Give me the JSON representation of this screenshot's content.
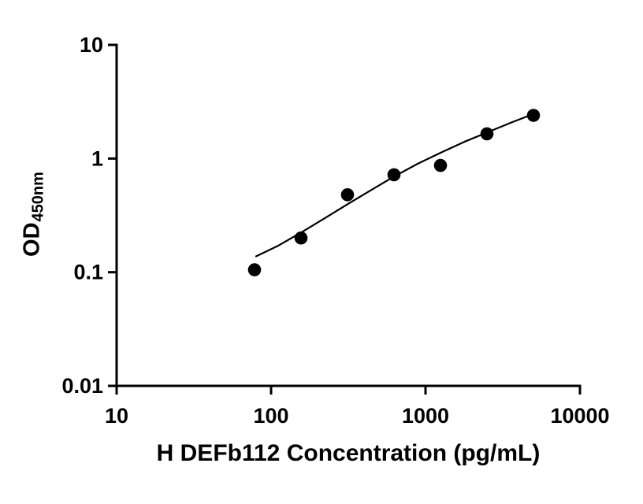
{
  "page": {
    "background": "#ffffff"
  },
  "chart_data": {
    "type": "scatter",
    "title": "",
    "xlabel": "H DEFb112 Concentration (pg/mL)",
    "ylabel": "OD450nm",
    "ylabel_main": "OD",
    "ylabel_sub": "450nm",
    "x_scale": "log",
    "y_scale": "log",
    "xlim": [
      10,
      10000
    ],
    "ylim": [
      0.01,
      10
    ],
    "x_ticks": [
      "10",
      "100",
      "1000",
      "10000"
    ],
    "y_ticks": [
      "0.01",
      "0.1",
      "1",
      "10"
    ],
    "grid": false,
    "legend": false,
    "axis_color": "#000000",
    "marker": {
      "shape": "filled-circle",
      "color": "#000000",
      "radius_px": 8.3
    },
    "points": [
      {
        "x": 78.125,
        "y": 0.105
      },
      {
        "x": 156.25,
        "y": 0.2
      },
      {
        "x": 312.5,
        "y": 0.48
      },
      {
        "x": 625,
        "y": 0.72
      },
      {
        "x": 1250,
        "y": 0.87
      },
      {
        "x": 2500,
        "y": 1.65
      },
      {
        "x": 5000,
        "y": 2.4
      }
    ],
    "fit_line": [
      {
        "x": 80,
        "y": 0.138
      },
      {
        "x": 112,
        "y": 0.172
      },
      {
        "x": 158,
        "y": 0.225
      },
      {
        "x": 224,
        "y": 0.3
      },
      {
        "x": 316,
        "y": 0.4
      },
      {
        "x": 447,
        "y": 0.53
      },
      {
        "x": 631,
        "y": 0.7
      },
      {
        "x": 891,
        "y": 0.9
      },
      {
        "x": 1259,
        "y": 1.13
      },
      {
        "x": 1778,
        "y": 1.4
      },
      {
        "x": 2512,
        "y": 1.7
      },
      {
        "x": 3548,
        "y": 2.06
      },
      {
        "x": 5050,
        "y": 2.48
      }
    ]
  }
}
